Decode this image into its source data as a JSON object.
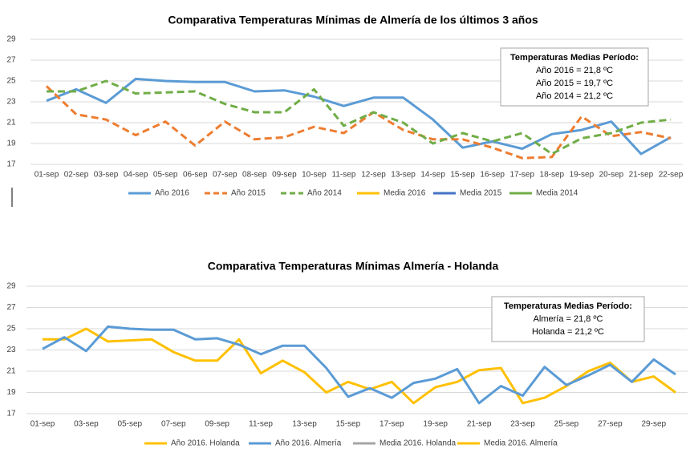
{
  "chart_data": [
    {
      "type": "line",
      "title": "Comparativa Temperaturas Mínimas de Almería de los últimos 3 años",
      "categories": [
        "01-sep",
        "02-sep",
        "03-sep",
        "04-sep",
        "05-sep",
        "06-sep",
        "07-sep",
        "08-sep",
        "09-sep",
        "10-sep",
        "11-sep",
        "12-sep",
        "13-sep",
        "14-sep",
        "15-sep",
        "16-sep",
        "17-sep",
        "18-sep",
        "19-sep",
        "20-sep",
        "21-sep",
        "22-sep"
      ],
      "ylim": [
        17,
        29
      ],
      "yticks": [
        17,
        19,
        21,
        23,
        25,
        27,
        29
      ],
      "grid": true,
      "legend": "bottom",
      "annotation": {
        "title": "Temperaturas Medias Período:",
        "lines": [
          "Año 2016 = 21,8 ºC",
          "Año 2015 = 19,7 ºC",
          "Año 2014 = 21,2 ºC"
        ]
      },
      "series": [
        {
          "name": "Año 2016",
          "color": "#5b9bd5",
          "style": "solid",
          "values": [
            23.1,
            24.2,
            22.9,
            25.2,
            25.0,
            24.9,
            24.9,
            24.0,
            24.1,
            23.5,
            22.6,
            23.4,
            23.4,
            21.3,
            18.6,
            19.2,
            18.5,
            19.9,
            20.3,
            21.1,
            18.0,
            19.6
          ]
        },
        {
          "name": "Año 2015",
          "color": "#ed7d31",
          "style": "dashed",
          "values": [
            24.5,
            21.8,
            21.3,
            19.8,
            21.1,
            18.8,
            21.1,
            19.4,
            19.6,
            20.6,
            20.0,
            22.0,
            20.3,
            19.4,
            19.4,
            18.6,
            17.6,
            17.7,
            21.6,
            19.7,
            20.1,
            19.5
          ]
        },
        {
          "name": "Año 2014",
          "color": "#70ad47",
          "style": "dashed",
          "values": [
            24.0,
            24.0,
            25.0,
            23.8,
            23.9,
            24.0,
            22.8,
            22.0,
            22.0,
            24.2,
            20.7,
            22.0,
            21.0,
            19.0,
            20.0,
            19.2,
            20.0,
            18.0,
            19.5,
            20.0,
            21.0,
            21.3
          ]
        },
        {
          "name": "Media 2016",
          "color": "#ffc000",
          "style": "solid",
          "values": [
            null,
            null,
            null,
            null,
            null,
            null,
            null,
            null,
            null,
            null,
            null,
            null,
            null,
            null,
            null,
            null,
            null,
            null,
            null,
            null,
            null,
            null
          ]
        },
        {
          "name": "Media 2015",
          "color": "#4472c4",
          "style": "solid",
          "values": [
            null,
            null,
            null,
            null,
            null,
            null,
            null,
            null,
            null,
            null,
            null,
            null,
            null,
            null,
            null,
            null,
            null,
            null,
            null,
            null,
            null,
            null
          ]
        },
        {
          "name": "Media 2014",
          "color": "#70ad47",
          "style": "solid",
          "values": [
            null,
            null,
            null,
            null,
            null,
            null,
            null,
            null,
            null,
            null,
            null,
            null,
            null,
            null,
            null,
            null,
            null,
            null,
            null,
            null,
            null,
            null
          ]
        }
      ]
    },
    {
      "type": "line",
      "title": "Comparativa Temperaturas Mínimas Almería - Holanda",
      "categories": [
        "01-sep",
        null,
        "03-sep",
        null,
        "05-sep",
        null,
        "07-sep",
        null,
        "09-sep",
        null,
        "11-sep",
        null,
        "13-sep",
        null,
        "15-sep",
        null,
        "17-sep",
        null,
        "19-sep",
        null,
        "21-sep",
        null,
        "23-sep",
        null,
        "25-sep",
        null,
        "27-sep",
        null,
        "29-sep",
        null
      ],
      "ylim": [
        17,
        29
      ],
      "yticks": [
        17,
        19,
        21,
        23,
        25,
        27,
        29
      ],
      "grid": true,
      "legend": "bottom",
      "annotation": {
        "title": "Temperaturas Medias Período:",
        "lines": [
          "Almería = 21,8 ºC",
          "Holanda = 21,2 ºC"
        ]
      },
      "series": [
        {
          "name": "Año 2016. Holanda",
          "color": "#ffc000",
          "style": "solid",
          "values": [
            24.0,
            24.0,
            25.0,
            23.8,
            23.9,
            24.0,
            22.8,
            22.0,
            22.0,
            24.0,
            20.8,
            22.0,
            20.9,
            19.0,
            20.0,
            19.3,
            20.0,
            18.0,
            19.5,
            20.0,
            21.1,
            21.3,
            18.0,
            18.5,
            19.6,
            21.0,
            21.8,
            20.0,
            20.5,
            19.0
          ]
        },
        {
          "name": "Año 2016. Almería",
          "color": "#5b9bd5",
          "style": "solid",
          "values": [
            23.1,
            24.2,
            22.9,
            25.2,
            25.0,
            24.9,
            24.9,
            24.0,
            24.1,
            23.5,
            22.6,
            23.4,
            23.4,
            21.3,
            18.6,
            19.4,
            18.5,
            19.9,
            20.3,
            21.2,
            18.0,
            19.6,
            18.7,
            21.4,
            19.7,
            20.6,
            21.6,
            20.0,
            22.1,
            20.7
          ]
        },
        {
          "name": "Media 2016. Holanda",
          "color": "#a5a5a5",
          "style": "solid",
          "values": [
            null,
            null,
            null,
            null,
            null,
            null,
            null,
            null,
            null,
            null,
            null,
            null,
            null,
            null,
            null,
            null,
            null,
            null,
            null,
            null,
            null,
            null,
            null,
            null,
            null,
            null,
            null,
            null,
            null,
            null
          ]
        },
        {
          "name": "Media 2016. Almería",
          "color": "#ffc000",
          "style": "solid",
          "values": [
            null,
            null,
            null,
            null,
            null,
            null,
            null,
            null,
            null,
            null,
            null,
            null,
            null,
            null,
            null,
            null,
            null,
            null,
            null,
            null,
            null,
            null,
            null,
            null,
            null,
            null,
            null,
            null,
            null,
            null
          ]
        }
      ]
    }
  ]
}
